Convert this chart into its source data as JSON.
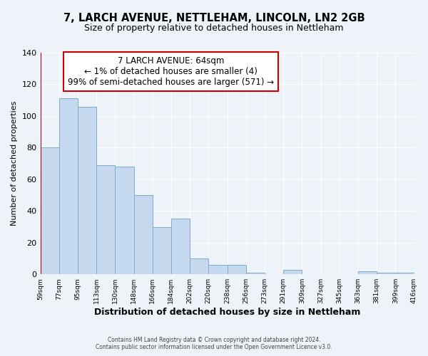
{
  "title": "7, LARCH AVENUE, NETTLEHAM, LINCOLN, LN2 2GB",
  "subtitle": "Size of property relative to detached houses in Nettleham",
  "xlabel": "Distribution of detached houses by size in Nettleham",
  "ylabel": "Number of detached properties",
  "bar_values": [
    80,
    111,
    106,
    69,
    68,
    50,
    30,
    35,
    10,
    6,
    6,
    1,
    0,
    3,
    0,
    0,
    0,
    2,
    1,
    1
  ],
  "bin_labels": [
    "59sqm",
    "77sqm",
    "95sqm",
    "113sqm",
    "130sqm",
    "148sqm",
    "166sqm",
    "184sqm",
    "202sqm",
    "220sqm",
    "238sqm",
    "256sqm",
    "273sqm",
    "291sqm",
    "309sqm",
    "327sqm",
    "345sqm",
    "363sqm",
    "381sqm",
    "399sqm",
    "416sqm"
  ],
  "bar_color": "#c5d8ed",
  "bar_edge_color": "#7aadd4",
  "annotation_box_color": "#cc0000",
  "annotation_line1": "7 LARCH AVENUE: 64sqm",
  "annotation_line2": "← 1% of detached houses are smaller (4)",
  "annotation_line3": "99% of semi-detached houses are larger (571) →",
  "ylim": [
    0,
    140
  ],
  "yticks": [
    0,
    20,
    40,
    60,
    80,
    100,
    120,
    140
  ],
  "bg_color": "#eef3f9",
  "grid_color": "#ffffff",
  "footer_line1": "Contains HM Land Registry data © Crown copyright and database right 2024.",
  "footer_line2": "Contains public sector information licensed under the Open Government Licence v3.0.",
  "title_fontsize": 10.5,
  "subtitle_fontsize": 9
}
